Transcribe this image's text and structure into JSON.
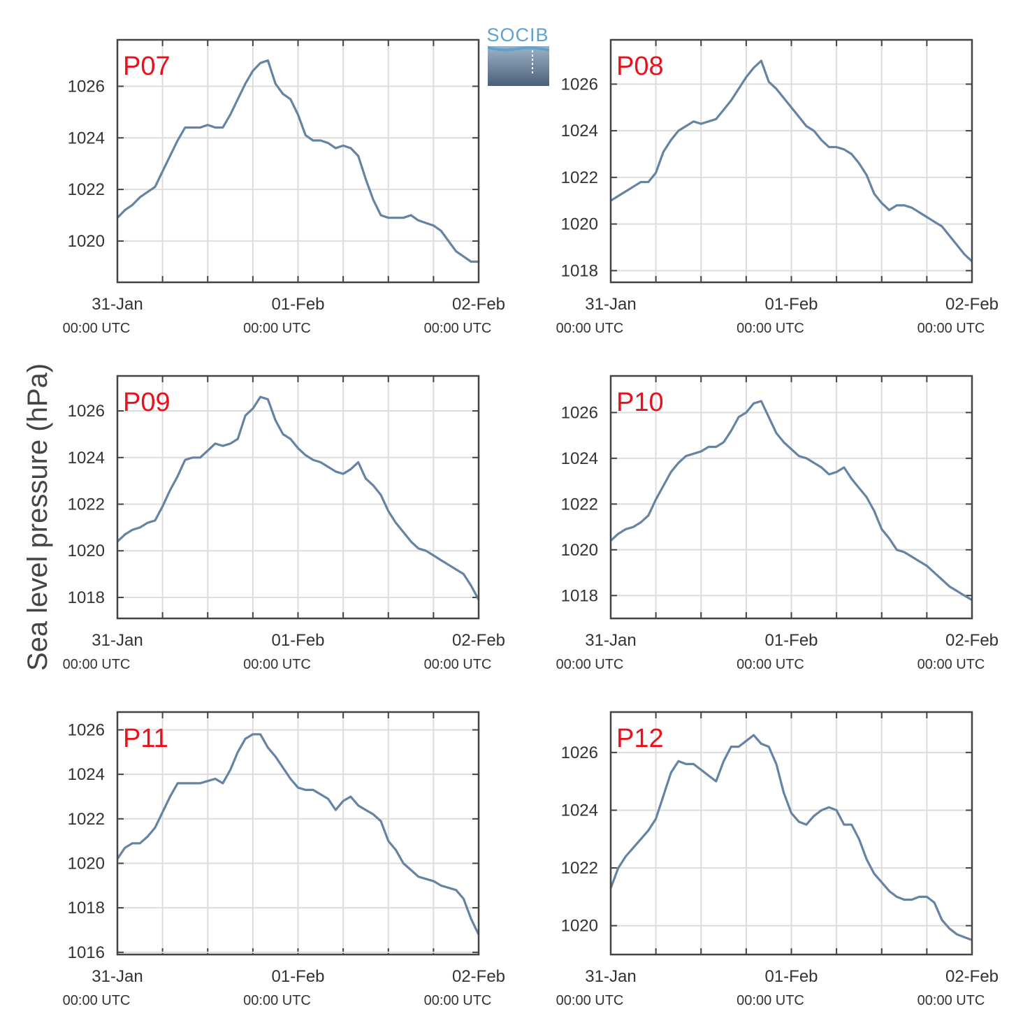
{
  "figure": {
    "ylabel": "Sea level pressure (hPa)",
    "logo_text": "SOCIB",
    "colors": {
      "series": "#6583a3",
      "panel_label": "#e8121c",
      "grid": "#dddddd",
      "frame": "#444444"
    }
  },
  "chart_data": [
    {
      "type": "line",
      "panel_label": "P07",
      "x_ticks": [
        {
          "label": "31-Jan",
          "sub": "00:00 UTC"
        },
        {
          "label": "01-Feb",
          "sub": "00:00 UTC"
        },
        {
          "label": "02-Feb",
          "sub": "00:00 UTC"
        }
      ],
      "xlim": [
        0,
        48
      ],
      "ylim": [
        1018.4,
        1027.8
      ],
      "y_ticks": [
        1020,
        1022,
        1024,
        1026
      ],
      "grid": true,
      "series": [
        {
          "x": [
            0,
            1,
            2,
            3,
            4,
            5,
            6,
            7,
            8,
            9,
            10,
            11,
            12,
            13,
            14,
            15,
            16,
            17,
            18,
            19,
            20,
            21,
            22,
            23,
            24,
            25,
            26,
            27,
            28,
            29,
            30,
            31,
            32,
            33,
            34,
            35,
            36,
            37,
            38,
            39,
            40,
            41,
            42,
            43,
            44,
            45,
            46,
            47,
            48
          ],
          "y": [
            1020.9,
            1021.2,
            1021.4,
            1021.7,
            1021.9,
            1022.1,
            1022.7,
            1023.3,
            1023.9,
            1024.4,
            1024.4,
            1024.4,
            1024.5,
            1024.4,
            1024.4,
            1024.9,
            1025.5,
            1026.1,
            1026.6,
            1026.9,
            1027.0,
            1026.1,
            1025.7,
            1025.5,
            1024.9,
            1024.1,
            1023.9,
            1023.9,
            1023.8,
            1023.6,
            1023.7,
            1023.6,
            1023.3,
            1022.4,
            1021.6,
            1021.0,
            1020.9,
            1020.9,
            1020.9,
            1021.0,
            1020.8,
            1020.7,
            1020.6,
            1020.4,
            1020.0,
            1019.6,
            1019.4,
            1019.2,
            1019.2
          ]
        }
      ]
    },
    {
      "type": "line",
      "panel_label": "P08",
      "x_ticks": [
        {
          "label": "31-Jan",
          "sub": "00:00 UTC"
        },
        {
          "label": "01-Feb",
          "sub": "00:00 UTC"
        },
        {
          "label": "02-Feb",
          "sub": "00:00 UTC"
        }
      ],
      "xlim": [
        0,
        48
      ],
      "ylim": [
        1017.5,
        1027.9
      ],
      "y_ticks": [
        1018,
        1020,
        1022,
        1024,
        1026
      ],
      "grid": true,
      "series": [
        {
          "x": [
            0,
            1,
            2,
            3,
            4,
            5,
            6,
            7,
            8,
            9,
            10,
            11,
            12,
            13,
            14,
            15,
            16,
            17,
            18,
            19,
            20,
            21,
            22,
            23,
            24,
            25,
            26,
            27,
            28,
            29,
            30,
            31,
            32,
            33,
            34,
            35,
            36,
            37,
            38,
            39,
            40,
            41,
            42,
            43,
            44,
            45,
            46,
            47,
            48
          ],
          "y": [
            1021.0,
            1021.2,
            1021.4,
            1021.6,
            1021.8,
            1021.8,
            1022.2,
            1023.1,
            1023.6,
            1024.0,
            1024.2,
            1024.4,
            1024.3,
            1024.4,
            1024.5,
            1024.9,
            1025.3,
            1025.8,
            1026.3,
            1026.7,
            1027.0,
            1026.1,
            1025.8,
            1025.4,
            1025.0,
            1024.6,
            1024.2,
            1024.0,
            1023.6,
            1023.3,
            1023.3,
            1023.2,
            1023.0,
            1022.6,
            1022.1,
            1021.3,
            1020.9,
            1020.6,
            1020.8,
            1020.8,
            1020.7,
            1020.5,
            1020.3,
            1020.1,
            1019.9,
            1019.5,
            1019.1,
            1018.7,
            1018.4
          ]
        }
      ]
    },
    {
      "type": "line",
      "panel_label": "P09",
      "x_ticks": [
        {
          "label": "31-Jan",
          "sub": "00:00 UTC"
        },
        {
          "label": "01-Feb",
          "sub": "00:00 UTC"
        },
        {
          "label": "02-Feb",
          "sub": "00:00 UTC"
        }
      ],
      "xlim": [
        0,
        48
      ],
      "ylim": [
        1017.1,
        1027.5
      ],
      "y_ticks": [
        1018,
        1020,
        1022,
        1024,
        1026
      ],
      "grid": true,
      "series": [
        {
          "x": [
            0,
            1,
            2,
            3,
            4,
            5,
            6,
            7,
            8,
            9,
            10,
            11,
            12,
            13,
            14,
            15,
            16,
            17,
            18,
            19,
            20,
            21,
            22,
            23,
            24,
            25,
            26,
            27,
            28,
            29,
            30,
            31,
            32,
            33,
            34,
            35,
            36,
            37,
            38,
            39,
            40,
            41,
            42,
            43,
            44,
            45,
            46,
            47,
            48
          ],
          "y": [
            1020.4,
            1020.7,
            1020.9,
            1021.0,
            1021.2,
            1021.3,
            1021.9,
            1022.6,
            1023.2,
            1023.9,
            1024.0,
            1024.0,
            1024.3,
            1024.6,
            1024.5,
            1024.6,
            1024.8,
            1025.8,
            1026.1,
            1026.6,
            1026.5,
            1025.6,
            1025.0,
            1024.8,
            1024.4,
            1024.1,
            1023.9,
            1023.8,
            1023.6,
            1023.4,
            1023.3,
            1023.5,
            1023.8,
            1023.1,
            1022.8,
            1022.4,
            1021.7,
            1021.2,
            1020.8,
            1020.4,
            1020.1,
            1020.0,
            1019.8,
            1019.6,
            1019.4,
            1019.2,
            1019.0,
            1018.5,
            1017.9
          ]
        }
      ]
    },
    {
      "type": "line",
      "panel_label": "P10",
      "x_ticks": [
        {
          "label": "31-Jan",
          "sub": "00:00 UTC"
        },
        {
          "label": "01-Feb",
          "sub": "00:00 UTC"
        },
        {
          "label": "02-Feb",
          "sub": "00:00 UTC"
        }
      ],
      "xlim": [
        0,
        48
      ],
      "ylim": [
        1017.0,
        1027.6
      ],
      "y_ticks": [
        1018,
        1020,
        1022,
        1024,
        1026
      ],
      "grid": true,
      "series": [
        {
          "x": [
            0,
            1,
            2,
            3,
            4,
            5,
            6,
            7,
            8,
            9,
            10,
            11,
            12,
            13,
            14,
            15,
            16,
            17,
            18,
            19,
            20,
            21,
            22,
            23,
            24,
            25,
            26,
            27,
            28,
            29,
            30,
            31,
            32,
            33,
            34,
            35,
            36,
            37,
            38,
            39,
            40,
            41,
            42,
            43,
            44,
            45,
            46,
            47,
            48
          ],
          "y": [
            1020.4,
            1020.7,
            1020.9,
            1021.0,
            1021.2,
            1021.5,
            1022.2,
            1022.8,
            1023.4,
            1023.8,
            1024.1,
            1024.2,
            1024.3,
            1024.5,
            1024.5,
            1024.7,
            1025.2,
            1025.8,
            1026.0,
            1026.4,
            1026.5,
            1025.8,
            1025.1,
            1024.7,
            1024.4,
            1024.1,
            1024.0,
            1023.8,
            1023.6,
            1023.3,
            1023.4,
            1023.6,
            1023.1,
            1022.7,
            1022.3,
            1021.7,
            1020.9,
            1020.5,
            1020.0,
            1019.9,
            1019.7,
            1019.5,
            1019.3,
            1019.0,
            1018.7,
            1018.4,
            1018.2,
            1018.0,
            1017.8
          ]
        }
      ]
    },
    {
      "type": "line",
      "panel_label": "P11",
      "x_ticks": [
        {
          "label": "31-Jan",
          "sub": "00:00 UTC"
        },
        {
          "label": "01-Feb",
          "sub": "00:00 UTC"
        },
        {
          "label": "02-Feb",
          "sub": "00:00 UTC"
        }
      ],
      "xlim": [
        0,
        48
      ],
      "ylim": [
        1015.9,
        1026.8
      ],
      "y_ticks": [
        1016,
        1018,
        1020,
        1022,
        1024,
        1026
      ],
      "grid": true,
      "series": [
        {
          "x": [
            0,
            1,
            2,
            3,
            4,
            5,
            6,
            7,
            8,
            9,
            10,
            11,
            12,
            13,
            14,
            15,
            16,
            17,
            18,
            19,
            20,
            21,
            22,
            23,
            24,
            25,
            26,
            27,
            28,
            29,
            30,
            31,
            32,
            33,
            34,
            35,
            36,
            37,
            38,
            39,
            40,
            41,
            42,
            43,
            44,
            45,
            46,
            47,
            48
          ],
          "y": [
            1020.2,
            1020.7,
            1020.9,
            1020.9,
            1021.2,
            1021.6,
            1022.3,
            1023.0,
            1023.6,
            1023.6,
            1023.6,
            1023.6,
            1023.7,
            1023.8,
            1023.6,
            1024.2,
            1025.0,
            1025.6,
            1025.8,
            1025.8,
            1025.2,
            1024.8,
            1024.3,
            1023.8,
            1023.4,
            1023.3,
            1023.3,
            1023.1,
            1022.9,
            1022.4,
            1022.8,
            1023.0,
            1022.6,
            1022.4,
            1022.2,
            1021.9,
            1021.0,
            1020.6,
            1020.0,
            1019.7,
            1019.4,
            1019.3,
            1019.2,
            1019.0,
            1018.9,
            1018.8,
            1018.4,
            1017.5,
            1016.8
          ]
        }
      ]
    },
    {
      "type": "line",
      "panel_label": "P12",
      "x_ticks": [
        {
          "label": "31-Jan",
          "sub": "00:00 UTC"
        },
        {
          "label": "01-Feb",
          "sub": "00:00 UTC"
        },
        {
          "label": "02-Feb",
          "sub": "00:00 UTC"
        }
      ],
      "xlim": [
        0,
        48
      ],
      "ylim": [
        1019.0,
        1027.4
      ],
      "y_ticks": [
        1020,
        1022,
        1024,
        1026
      ],
      "grid": true,
      "series": [
        {
          "x": [
            0,
            1,
            2,
            3,
            4,
            5,
            6,
            7,
            8,
            9,
            10,
            11,
            12,
            13,
            14,
            15,
            16,
            17,
            18,
            19,
            20,
            21,
            22,
            23,
            24,
            25,
            26,
            27,
            28,
            29,
            30,
            31,
            32,
            33,
            34,
            35,
            36,
            37,
            38,
            39,
            40,
            41,
            42,
            43,
            44,
            45,
            46,
            47,
            48
          ],
          "y": [
            1021.3,
            1022.0,
            1022.4,
            1022.7,
            1023.0,
            1023.3,
            1023.7,
            1024.5,
            1025.3,
            1025.7,
            1025.6,
            1025.6,
            1025.4,
            1025.2,
            1025.0,
            1025.7,
            1026.2,
            1026.2,
            1026.4,
            1026.6,
            1026.3,
            1026.2,
            1025.6,
            1024.6,
            1023.9,
            1023.6,
            1023.5,
            1023.8,
            1024.0,
            1024.1,
            1024.0,
            1023.5,
            1023.5,
            1023.0,
            1022.3,
            1021.8,
            1021.5,
            1021.2,
            1021.0,
            1020.9,
            1020.9,
            1021.0,
            1021.0,
            1020.8,
            1020.2,
            1019.9,
            1019.7,
            1019.6,
            1019.5
          ]
        }
      ]
    }
  ]
}
